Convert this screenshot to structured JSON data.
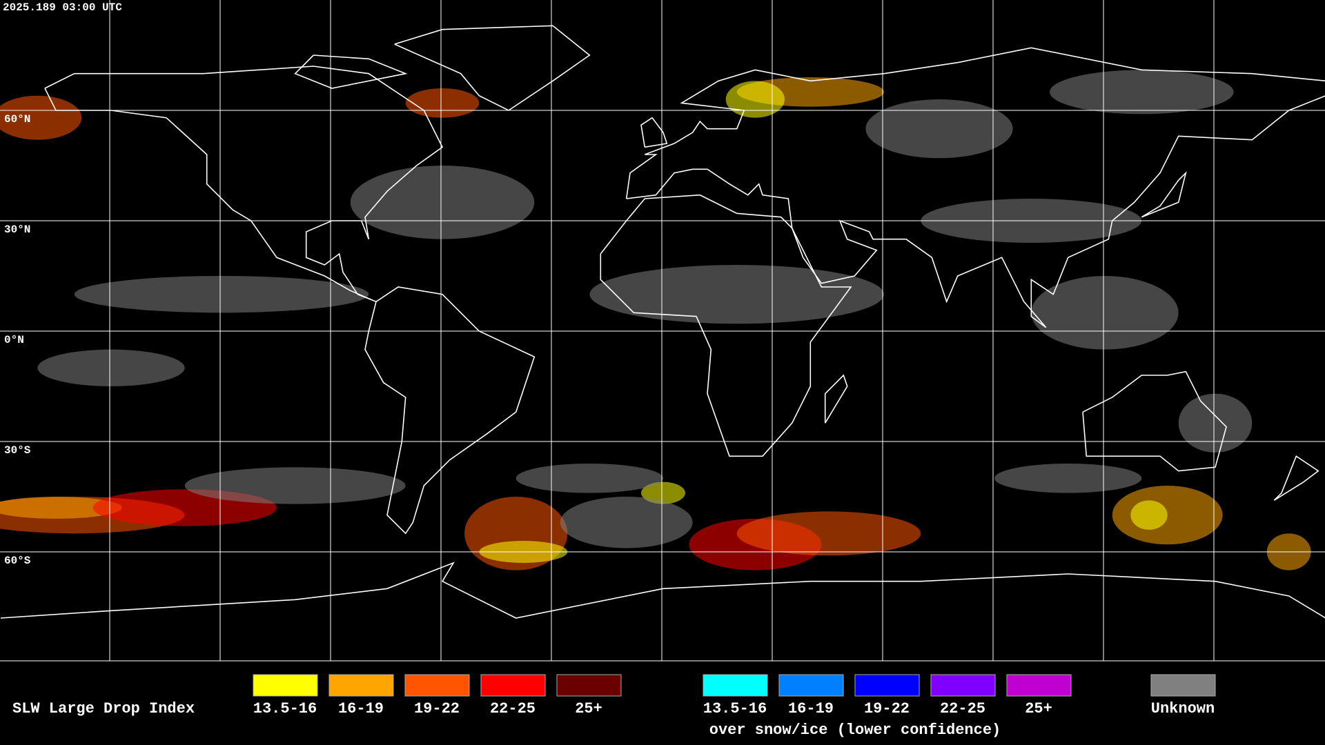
{
  "timestamp": "2025.189 03:00 UTC",
  "latitude_labels": [
    "60°N",
    "30°N",
    "0°N",
    "30°S",
    "60°S"
  ],
  "legend": {
    "title": "SLW Large Drop Index",
    "items": [
      {
        "label": "13.5-16",
        "color": "#ffff00"
      },
      {
        "label": "16-19",
        "color": "#ffa500"
      },
      {
        "label": "19-22",
        "color": "#ff5500"
      },
      {
        "label": "22-25",
        "color": "#ff0000"
      },
      {
        "label": "25+",
        "color": "#6a0000"
      }
    ],
    "snow_items": [
      {
        "label": "13.5-16",
        "color": "#00ffff"
      },
      {
        "label": "16-19",
        "color": "#0080ff"
      },
      {
        "label": "19-22",
        "color": "#0000ff"
      },
      {
        "label": "22-25",
        "color": "#7f00ff"
      },
      {
        "label": "25+",
        "color": "#c000d0"
      }
    ],
    "snow_note": "over snow/ice (lower confidence)",
    "unknown": {
      "label": "Unknown",
      "color": "#808080"
    }
  }
}
